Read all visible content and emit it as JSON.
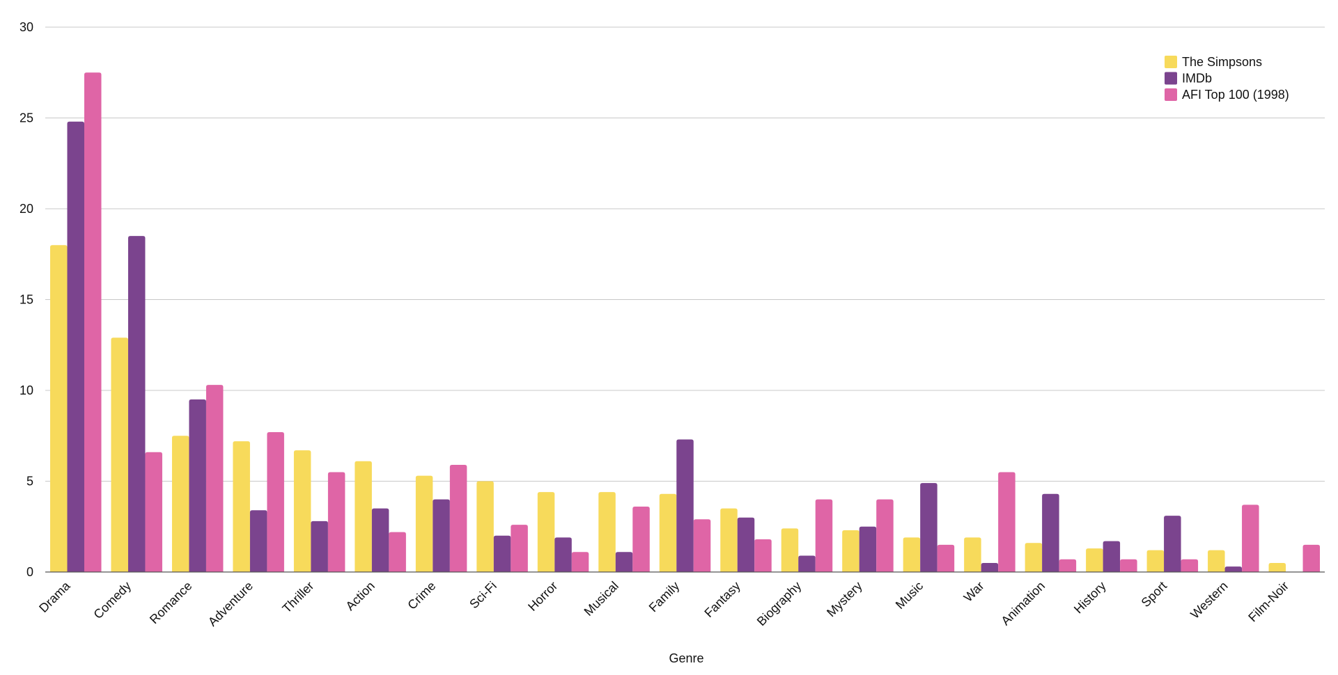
{
  "chart_data": {
    "type": "bar",
    "title": "",
    "xlabel": "Genre",
    "ylabel": "",
    "ylim": [
      0,
      30
    ],
    "yticks": [
      0,
      5,
      10,
      15,
      20,
      25,
      30
    ],
    "grid": true,
    "legend_position": "top-right",
    "categories": [
      "Drama",
      "Comedy",
      "Romance",
      "Adventure",
      "Thriller",
      "Action",
      "Crime",
      "Sci-Fi",
      "Horror",
      "Musical",
      "Family",
      "Fantasy",
      "Biography",
      "Mystery",
      "Music",
      "War",
      "Animation",
      "History",
      "Sport",
      "Western",
      "Film-Noir"
    ],
    "series": [
      {
        "name": "The Simpsons",
        "color": "#f7da5b",
        "values": [
          18.0,
          12.9,
          7.5,
          7.2,
          6.7,
          6.1,
          5.3,
          5.0,
          4.4,
          4.4,
          4.3,
          3.5,
          2.4,
          2.3,
          1.9,
          1.9,
          1.6,
          1.3,
          1.2,
          1.2,
          0.5
        ]
      },
      {
        "name": "IMDb",
        "color": "#7b448e",
        "values": [
          24.8,
          18.5,
          9.5,
          3.4,
          2.8,
          3.5,
          4.0,
          2.0,
          1.9,
          1.1,
          7.3,
          3.0,
          0.9,
          2.5,
          4.9,
          0.5,
          4.3,
          1.7,
          3.1,
          0.3,
          0.0
        ]
      },
      {
        "name": "AFI Top 100 (1998)",
        "color": "#df65a6",
        "values": [
          27.5,
          6.6,
          10.3,
          7.7,
          5.5,
          2.2,
          5.9,
          2.6,
          1.1,
          3.6,
          2.9,
          1.8,
          4.0,
          4.0,
          1.5,
          5.5,
          0.7,
          0.7,
          0.7,
          3.7,
          1.5
        ]
      }
    ],
    "colors": {
      "grid": "#c8c8c8",
      "axis": "#555555"
    }
  }
}
